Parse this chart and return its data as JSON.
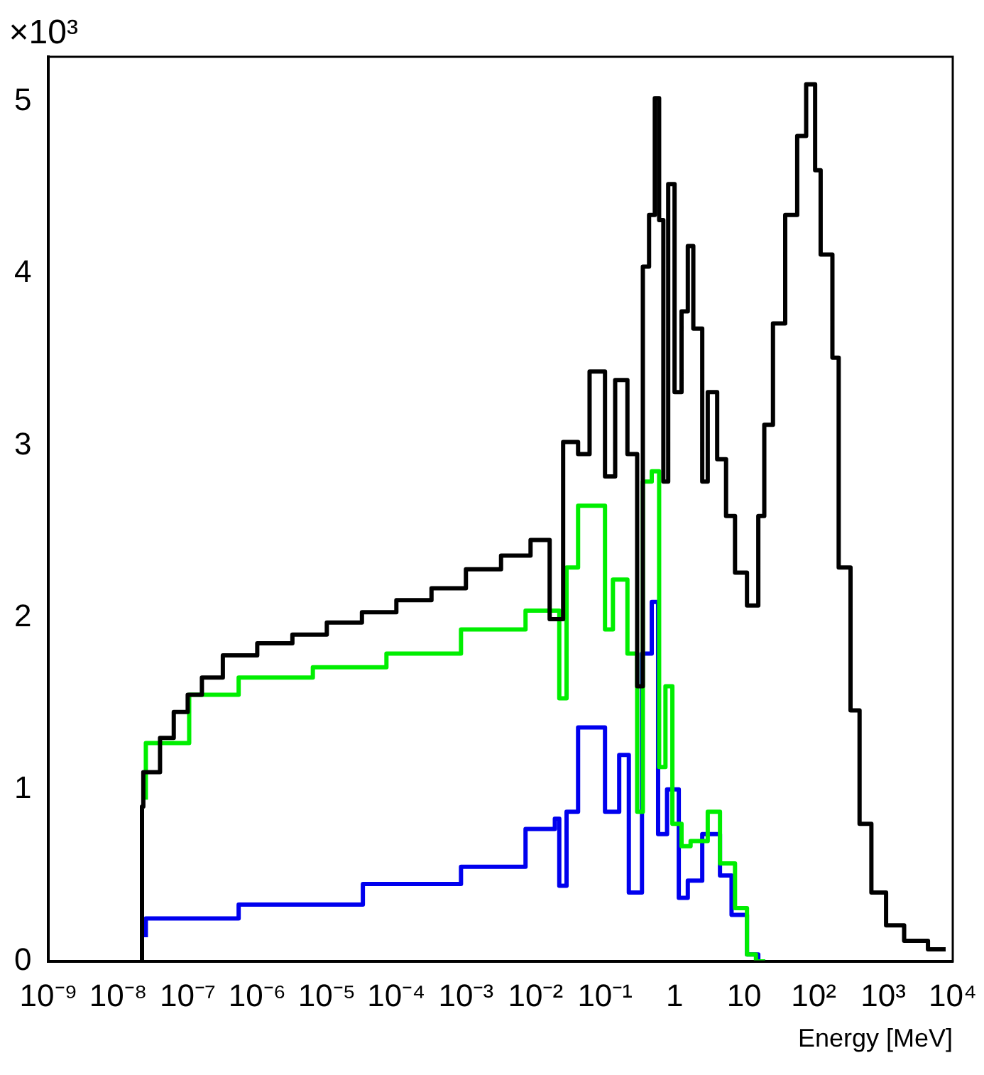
{
  "chart_data": {
    "type": "step",
    "xlabel": "Energy [MeV]",
    "log": "x",
    "grid": false,
    "legend": false,
    "annotations": [
      "×10³"
    ],
    "xlim": [
      1e-09,
      10000.0
    ],
    "xticks": [
      {
        "value": 1e-09,
        "label": "10⁻⁹"
      },
      {
        "value": 1e-08,
        "label": "10⁻⁸"
      },
      {
        "value": 1e-07,
        "label": "10⁻⁷"
      },
      {
        "value": 1e-06,
        "label": "10⁻⁶"
      },
      {
        "value": 1e-05,
        "label": "10⁻⁵"
      },
      {
        "value": 0.0001,
        "label": "10⁻⁴"
      },
      {
        "value": 0.001,
        "label": "10⁻³"
      },
      {
        "value": 0.01,
        "label": "10⁻²"
      },
      {
        "value": 0.1,
        "label": "10⁻¹"
      },
      1,
      10,
      {
        "value": 100,
        "label": "10²"
      },
      {
        "value": 1000,
        "label": "10³"
      },
      {
        "value": 10000,
        "label": "10⁴"
      }
    ],
    "ylim": [
      0,
      5.26
    ],
    "yticks": [
      0,
      1,
      2,
      3,
      4,
      5
    ],
    "series": [
      {
        "color": "#000000",
        "x": [
          2.2e-08,
          2.3e-08,
          4e-08,
          6.3e-08,
          1e-07,
          1.6e-07,
          3.2e-07,
          1e-06,
          3.2e-06,
          1e-05,
          3.2e-05,
          0.0001,
          0.00032,
          0.001,
          0.0032,
          0.0085,
          0.016,
          0.025,
          0.041,
          0.06,
          0.1,
          0.14,
          0.21,
          0.29,
          0.35,
          0.43,
          0.52,
          0.6,
          0.69,
          0.81,
          1.0,
          1.26,
          1.55,
          1.86,
          2.5,
          3.0,
          4.1,
          5.5,
          7.4,
          11,
          16,
          19.5,
          26,
          39,
          58,
          78,
          105,
          126,
          186,
          229,
          339,
          457,
          676,
          1100,
          2000,
          4400,
          7900
        ],
        "values": [
          0,
          0.9,
          1.1,
          1.3,
          1.45,
          1.55,
          1.65,
          1.78,
          1.85,
          1.9,
          1.97,
          2.03,
          2.1,
          2.17,
          2.28,
          2.36,
          2.45,
          1.99,
          3.02,
          2.95,
          3.43,
          2.82,
          3.38,
          2.95,
          1.6,
          4.04,
          4.34,
          5.02,
          4.31,
          2.79,
          4.52,
          3.31,
          3.78,
          4.16,
          3.68,
          2.79,
          3.31,
          2.92,
          2.59,
          2.26,
          2.07,
          2.59,
          3.12,
          3.71,
          4.34,
          4.8,
          5.1,
          4.6,
          4.11,
          3.51,
          2.29,
          1.46,
          0.8,
          0.4,
          0.21,
          0.12,
          0.07
        ]
      },
      {
        "color": "#00ee00",
        "x": [
          2.5e-08,
          1.05e-07,
          5.4e-07,
          6.3e-06,
          7.2e-05,
          0.00085,
          0.0072,
          0.022,
          0.028,
          0.041,
          0.1,
          0.13,
          0.21,
          0.29,
          0.35,
          0.47,
          0.6,
          0.74,
          0.93,
          1.26,
          1.7,
          3.0,
          4.5,
          7.4,
          11,
          14.8,
          20
        ],
        "values": [
          0.94,
          1.27,
          1.55,
          1.65,
          1.71,
          1.79,
          1.93,
          2.04,
          1.53,
          2.29,
          2.65,
          1.93,
          2.22,
          1.79,
          0.87,
          2.79,
          2.85,
          1.13,
          1.6,
          0.8,
          0.67,
          0.7,
          0.87,
          0.57,
          0.31,
          0.04,
          0
        ]
      },
      {
        "color": "#0000ee",
        "x": [
          2.5e-08,
          5.4e-07,
          3.3e-05,
          0.00085,
          0.0072,
          0.019,
          0.022,
          0.028,
          0.041,
          0.1,
          0.16,
          0.22,
          0.34,
          0.47,
          0.58,
          0.78,
          1.15,
          1.55,
          2.5,
          4.5,
          6.6,
          11,
          16,
          20
        ],
        "values": [
          0.14,
          0.25,
          0.33,
          0.45,
          0.55,
          0.77,
          0.83,
          0.44,
          0.87,
          1.36,
          0.87,
          1.2,
          0.4,
          1.79,
          2.09,
          0.74,
          1.0,
          0.37,
          0.47,
          0.74,
          0.5,
          0.27,
          0.04,
          0
        ]
      }
    ]
  }
}
